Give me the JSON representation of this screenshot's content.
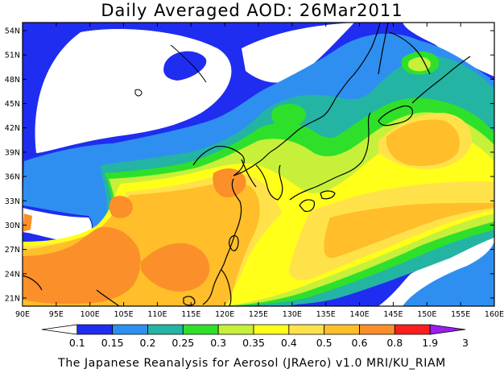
{
  "title": "Daily Averaged AOD: 26Mar2011",
  "credit": "The Japanese Reanalysis for Aerosol (JRAero) v1.0 MRI/KU_RIAM",
  "map": {
    "lon_range": [
      90,
      160
    ],
    "lat_range": [
      20,
      55
    ],
    "lon_ticks": [
      "90E",
      "95E",
      "100E",
      "105E",
      "110E",
      "115E",
      "120E",
      "125E",
      "130E",
      "135E",
      "140E",
      "145E",
      "150E",
      "155E",
      "160E"
    ],
    "lat_ticks": [
      "21N",
      "24N",
      "27N",
      "30N",
      "33N",
      "36N",
      "39N",
      "42N",
      "45N",
      "48N",
      "51N",
      "54N"
    ]
  },
  "colorbar": {
    "levels": [
      "0.1",
      "0.15",
      "0.2",
      "0.25",
      "0.3",
      "0.35",
      "0.4",
      "0.5",
      "0.6",
      "0.8",
      "1.9",
      "3"
    ],
    "colors": [
      "#ffffff",
      "#1f2df0",
      "#2e8ff0",
      "#24b4a4",
      "#2fe02a",
      "#c7f03a",
      "#ffff1a",
      "#ffe24a",
      "#ffbe2a",
      "#fb8f2a",
      "#fb1e1e",
      "#9a1ef0"
    ]
  }
}
